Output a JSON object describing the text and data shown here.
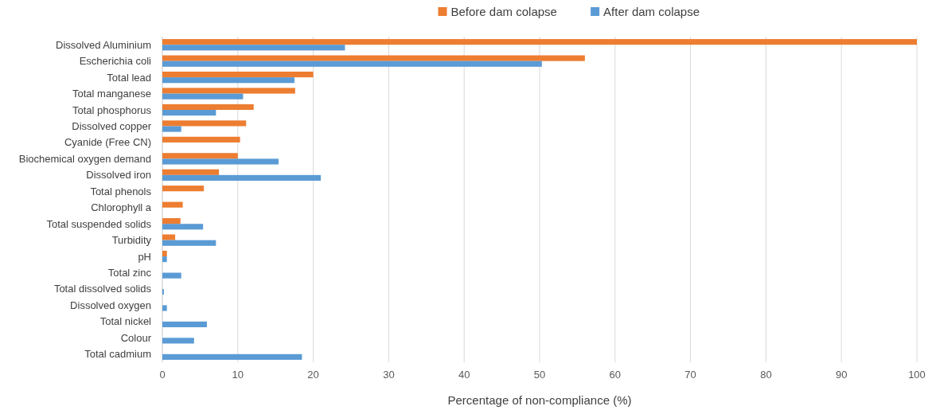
{
  "chart_data": {
    "type": "bar",
    "orientation": "horizontal",
    "xlabel": "Percentage of non-compliance (%)",
    "categories": [
      "Dissolved Aluminium",
      "Escherichia coli",
      "Total lead",
      "Total manganese",
      "Total phosphorus",
      "Dissolved copper",
      "Cyanide (Free CN)",
      "Biochemical oxygen demand",
      "Dissolved iron",
      "Total phenols",
      "Chlorophyll a",
      "Total suspended solids",
      "Turbidity",
      "pH",
      "Total zinc",
      "Total dissolved solids",
      "Dissolved oxygen",
      "Total nickel",
      "Colour",
      "Total cadmium"
    ],
    "series": [
      {
        "name": "Before dam colapse",
        "color": "#ed7d31",
        "values": [
          100,
          56.0,
          20.0,
          17.6,
          12.1,
          11.1,
          10.3,
          10.0,
          7.5,
          5.5,
          2.7,
          2.4,
          1.7,
          0.6,
          null,
          null,
          null,
          null,
          null,
          null
        ]
      },
      {
        "name": "After dam colapse",
        "color": "#5b9bd5",
        "values": [
          24.2,
          50.3,
          17.5,
          10.7,
          7.1,
          2.5,
          null,
          15.4,
          21.0,
          null,
          null,
          5.4,
          7.1,
          0.6,
          2.5,
          0.2,
          0.6,
          5.9,
          4.2,
          18.5
        ]
      }
    ],
    "xlim": [
      0,
      100
    ],
    "xticks": [
      0,
      10,
      20,
      30,
      40,
      50,
      60,
      70,
      80,
      90,
      100
    ],
    "grid": "x",
    "legend": "top"
  }
}
